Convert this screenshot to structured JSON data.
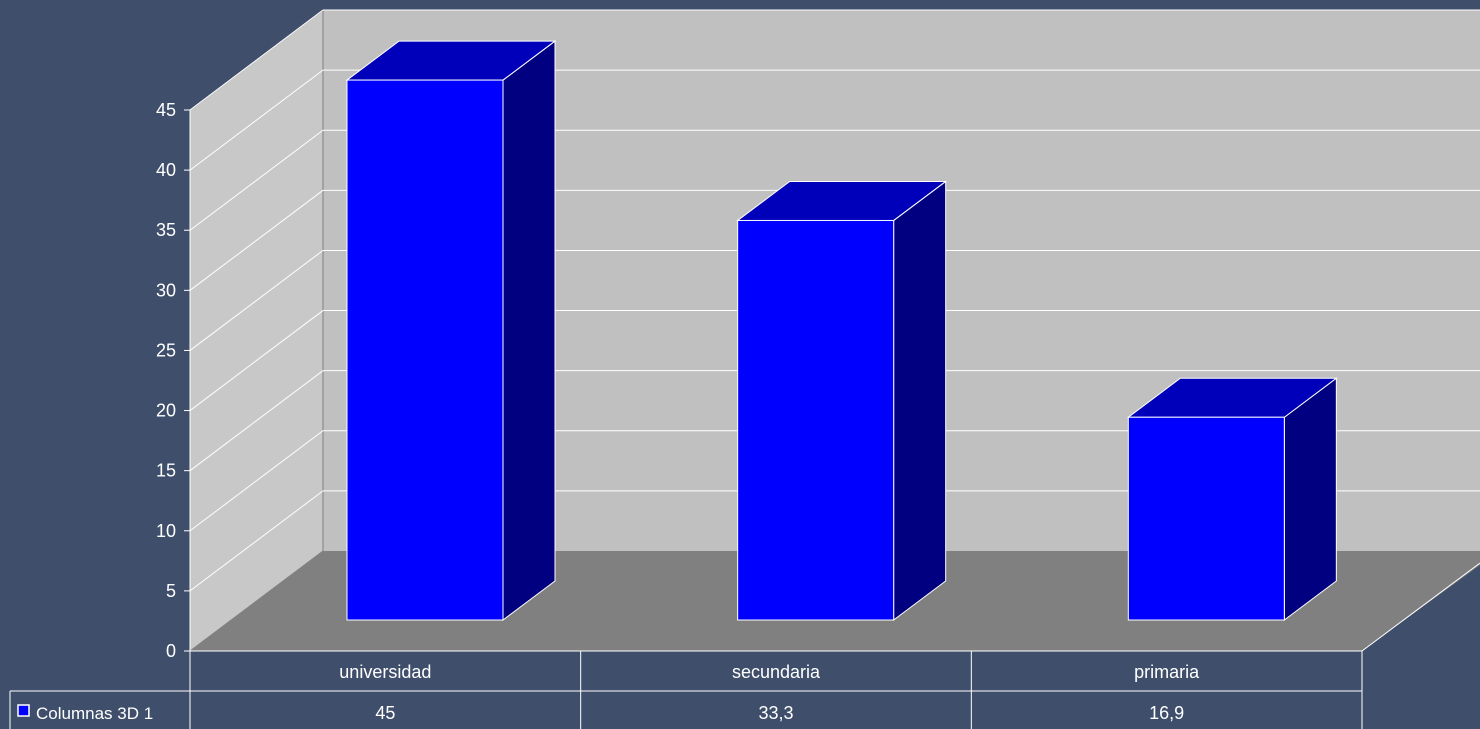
{
  "chart_data": {
    "type": "bar",
    "categories": [
      "universidad",
      "secundaria",
      "primaria"
    ],
    "series": [
      {
        "name": "Columnas 3D 1",
        "values": [
          45,
          33.3,
          16.9
        ]
      }
    ],
    "value_labels": [
      "45",
      "33,3",
      "16,9"
    ],
    "y_ticks": [
      "0",
      "5",
      "10",
      "15",
      "20",
      "25",
      "30",
      "35",
      "40",
      "45"
    ],
    "ylim": [
      0,
      45
    ],
    "grid": true,
    "legend": "data-table-bottom-left",
    "colors": {
      "background": "#3f4f6b",
      "wall": "#c0c0c0",
      "side_wall": "#c8c8c8",
      "floor": "#808080",
      "bar_front": "#0000ff",
      "bar_top": "#0000bb",
      "bar_side": "#000080",
      "text": "#ffffff"
    }
  }
}
